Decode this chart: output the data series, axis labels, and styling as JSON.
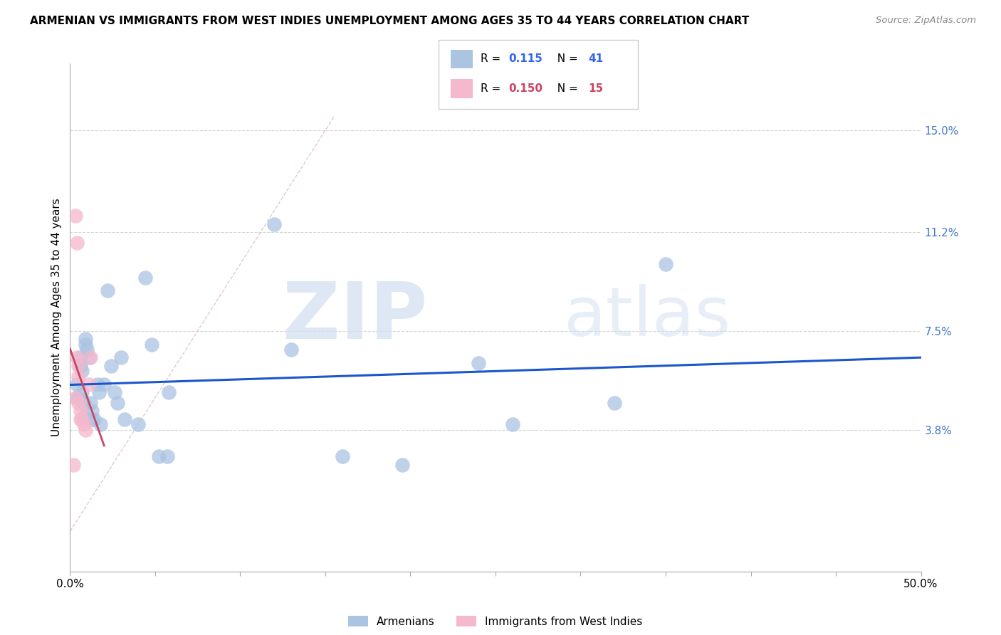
{
  "title": "ARMENIAN VS IMMIGRANTS FROM WEST INDIES UNEMPLOYMENT AMONG AGES 35 TO 44 YEARS CORRELATION CHART",
  "source": "Source: ZipAtlas.com",
  "ylabel": "Unemployment Among Ages 35 to 44 years",
  "yticks_right": [
    "3.8%",
    "7.5%",
    "11.2%",
    "15.0%"
  ],
  "yticks_right_vals": [
    0.038,
    0.075,
    0.112,
    0.15
  ],
  "xlim": [
    0.0,
    0.5
  ],
  "ylim": [
    -0.015,
    0.175
  ],
  "armenian_color": "#aac4e2",
  "westindies_color": "#f5b8cc",
  "armenian_line_color": "#1a56cc",
  "westindies_line_color": "#cc4466",
  "diagonal_color": "#ddbbbb",
  "R_armenian": 0.115,
  "N_armenian": 41,
  "R_westindies": 0.15,
  "N_westindies": 15,
  "armenian_label": "Armenians",
  "westindies_label": "Immigrants from West Indies",
  "armenian_x": [
    0.004,
    0.004,
    0.005,
    0.006,
    0.006,
    0.007,
    0.007,
    0.008,
    0.008,
    0.009,
    0.009,
    0.01,
    0.011,
    0.012,
    0.013,
    0.013,
    0.014,
    0.016,
    0.017,
    0.018,
    0.02,
    0.022,
    0.024,
    0.026,
    0.028,
    0.03,
    0.032,
    0.04,
    0.044,
    0.048,
    0.052,
    0.057,
    0.058,
    0.12,
    0.13,
    0.16,
    0.195,
    0.24,
    0.26,
    0.32,
    0.35
  ],
  "armenian_y": [
    0.05,
    0.055,
    0.05,
    0.065,
    0.062,
    0.06,
    0.052,
    0.048,
    0.043,
    0.072,
    0.07,
    0.068,
    0.065,
    0.048,
    0.045,
    0.042,
    0.042,
    0.055,
    0.052,
    0.04,
    0.055,
    0.09,
    0.062,
    0.052,
    0.048,
    0.065,
    0.042,
    0.04,
    0.095,
    0.07,
    0.028,
    0.028,
    0.052,
    0.115,
    0.068,
    0.028,
    0.025,
    0.063,
    0.04,
    0.048,
    0.1
  ],
  "westindies_x": [
    0.002,
    0.003,
    0.003,
    0.004,
    0.004,
    0.005,
    0.005,
    0.005,
    0.006,
    0.006,
    0.007,
    0.008,
    0.009,
    0.011,
    0.012
  ],
  "westindies_y": [
    0.025,
    0.05,
    0.118,
    0.108,
    0.065,
    0.062,
    0.058,
    0.048,
    0.045,
    0.042,
    0.042,
    0.04,
    0.038,
    0.055,
    0.065
  ],
  "watermark_zip": "ZIP",
  "watermark_atlas": "atlas"
}
